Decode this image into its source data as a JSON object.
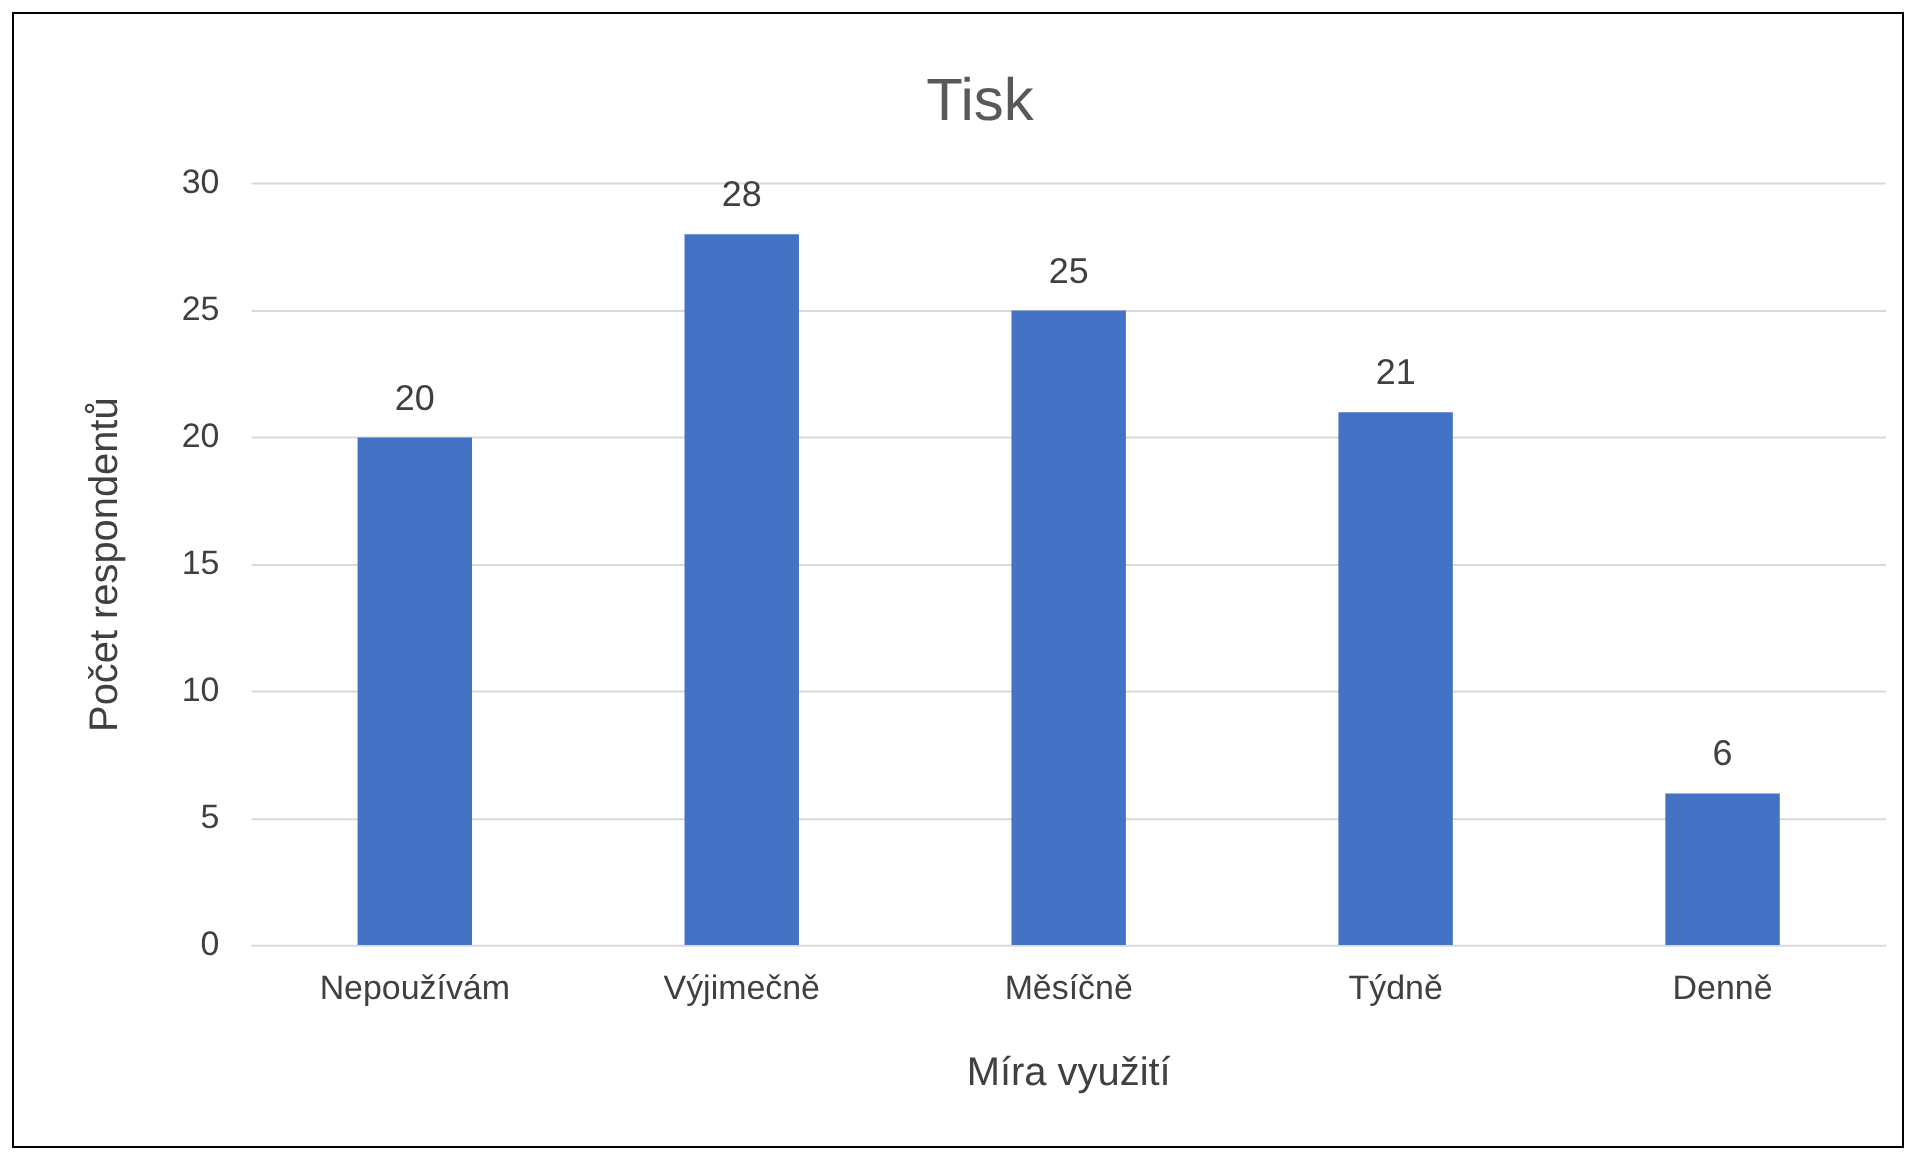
{
  "chart_data": {
    "type": "bar",
    "title": "Tisk",
    "xlabel": "Míra využití",
    "ylabel": "Počet respondentů",
    "categories": [
      "Nepoužívám",
      "Výjimečně",
      "Měsíčně",
      "Týdně",
      "Denně"
    ],
    "values": [
      20,
      28,
      25,
      21,
      6
    ],
    "color": "#4472c4",
    "ylim": [
      0,
      30
    ],
    "yticks": [
      0,
      5,
      10,
      15,
      20,
      25,
      30
    ],
    "grid": "y",
    "data_labels": true
  }
}
